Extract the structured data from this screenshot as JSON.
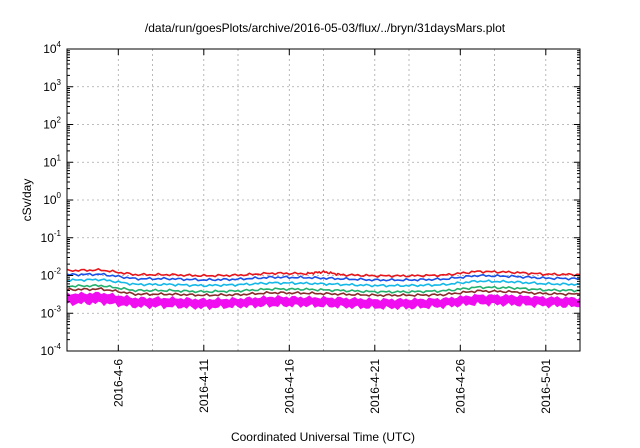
{
  "chart_data": {
    "type": "line",
    "title": "/data/run/goesPlots/archive/2016-05-03/flux/../bryn/31daysMars.plot",
    "xlabel": "Coordinated Universal Time (UTC)",
    "ylabel": "cSv/day",
    "yscale": "log",
    "ylim": [
      0.0001,
      10000
    ],
    "y_ticks": [
      {
        "value": 0.0001,
        "base": "10",
        "exp": "-4"
      },
      {
        "value": 0.001,
        "base": "10",
        "exp": "-3"
      },
      {
        "value": 0.01,
        "base": "10",
        "exp": "-2"
      },
      {
        "value": 0.1,
        "base": "10",
        "exp": "-1"
      },
      {
        "value": 1,
        "base": "10",
        "exp": "0"
      },
      {
        "value": 10,
        "base": "10",
        "exp": "1"
      },
      {
        "value": 100,
        "base": "10",
        "exp": "2"
      },
      {
        "value": 1000,
        "base": "10",
        "exp": "3"
      },
      {
        "value": 10000,
        "base": "10",
        "exp": "4"
      }
    ],
    "xlim": [
      "2016-04-03",
      "2016-05-03"
    ],
    "x_ticks": [
      {
        "date": "2016-04-06",
        "label": "2016-4-6"
      },
      {
        "date": "2016-04-11",
        "label": "2016-4-11"
      },
      {
        "date": "2016-04-16",
        "label": "2016-4-16"
      },
      {
        "date": "2016-04-21",
        "label": "2016-4-21"
      },
      {
        "date": "2016-04-26",
        "label": "2016-4-26"
      },
      {
        "date": "2016-05-01",
        "label": "2016-5-01"
      }
    ],
    "x_minor_ticks": [
      "2016-04-08",
      "2016-04-13",
      "2016-04-18",
      "2016-04-23",
      "2016-04-28",
      "2016-05-03"
    ],
    "grid": true,
    "legend": "none",
    "series": [
      {
        "color": "#e8141b",
        "kind": "line",
        "x": [
          "2016-04-03",
          "2016-04-05",
          "2016-04-07",
          "2016-04-09",
          "2016-04-11",
          "2016-04-13",
          "2016-04-15",
          "2016-04-17",
          "2016-04-18",
          "2016-04-19",
          "2016-04-21",
          "2016-04-23",
          "2016-04-25",
          "2016-04-27",
          "2016-04-29",
          "2016-05-01",
          "2016-05-03"
        ],
        "y": [
          0.0135,
          0.014,
          0.0105,
          0.0105,
          0.0098,
          0.0102,
          0.0115,
          0.0112,
          0.0125,
          0.0105,
          0.0098,
          0.0098,
          0.0102,
          0.0128,
          0.0122,
          0.0108,
          0.0105
        ]
      },
      {
        "color": "#1a52e8",
        "kind": "line",
        "x": [
          "2016-04-03",
          "2016-04-05",
          "2016-04-07",
          "2016-04-09",
          "2016-04-11",
          "2016-04-13",
          "2016-04-15",
          "2016-04-17",
          "2016-04-19",
          "2016-04-21",
          "2016-04-23",
          "2016-04-25",
          "2016-04-27",
          "2016-04-29",
          "2016-05-01",
          "2016-05-03"
        ],
        "y": [
          0.0105,
          0.0108,
          0.0082,
          0.0082,
          0.0076,
          0.008,
          0.009,
          0.0088,
          0.0082,
          0.0076,
          0.0076,
          0.008,
          0.01,
          0.0095,
          0.0085,
          0.0082
        ]
      },
      {
        "color": "#14b8e8",
        "kind": "line",
        "x": [
          "2016-04-03",
          "2016-04-05",
          "2016-04-07",
          "2016-04-09",
          "2016-04-11",
          "2016-04-13",
          "2016-04-15",
          "2016-04-17",
          "2016-04-19",
          "2016-04-21",
          "2016-04-23",
          "2016-04-25",
          "2016-04-27",
          "2016-04-29",
          "2016-05-01",
          "2016-05-03"
        ],
        "y": [
          0.0075,
          0.0078,
          0.0058,
          0.0058,
          0.0054,
          0.0057,
          0.0064,
          0.0062,
          0.0058,
          0.0054,
          0.0054,
          0.0057,
          0.0071,
          0.0068,
          0.006,
          0.0058
        ]
      },
      {
        "color": "#22b06e",
        "kind": "line",
        "x": [
          "2016-04-03",
          "2016-04-05",
          "2016-04-07",
          "2016-04-09",
          "2016-04-11",
          "2016-04-13",
          "2016-04-15",
          "2016-04-17",
          "2016-04-19",
          "2016-04-21",
          "2016-04-23",
          "2016-04-25",
          "2016-04-27",
          "2016-04-29",
          "2016-05-01",
          "2016-05-03"
        ],
        "y": [
          0.0052,
          0.0054,
          0.004,
          0.004,
          0.0037,
          0.0039,
          0.0044,
          0.0043,
          0.004,
          0.0037,
          0.0037,
          0.0039,
          0.0049,
          0.0047,
          0.0041,
          0.004
        ]
      },
      {
        "color": "#8a2a2a",
        "kind": "line",
        "x": [
          "2016-04-03",
          "2016-04-05",
          "2016-04-07",
          "2016-04-09",
          "2016-04-11",
          "2016-04-13",
          "2016-04-15",
          "2016-04-17",
          "2016-04-19",
          "2016-04-21",
          "2016-04-23",
          "2016-04-25",
          "2016-04-27",
          "2016-04-29",
          "2016-05-01",
          "2016-05-03"
        ],
        "y": [
          0.0042,
          0.0044,
          0.0032,
          0.0032,
          0.003,
          0.0031,
          0.0035,
          0.0034,
          0.0032,
          0.003,
          0.003,
          0.0031,
          0.0039,
          0.0037,
          0.0033,
          0.0032
        ]
      },
      {
        "color": "#f00ef0",
        "kind": "band",
        "x": [
          "2016-04-03",
          "2016-04-05",
          "2016-04-07",
          "2016-04-09",
          "2016-04-11",
          "2016-04-13",
          "2016-04-15",
          "2016-04-17",
          "2016-04-19",
          "2016-04-21",
          "2016-04-23",
          "2016-04-25",
          "2016-04-27",
          "2016-04-29",
          "2016-05-01",
          "2016-05-03"
        ],
        "y": [
          0.0032,
          0.0034,
          0.0025,
          0.0025,
          0.0023,
          0.0024,
          0.0027,
          0.0026,
          0.0025,
          0.0023,
          0.0023,
          0.0024,
          0.003,
          0.0029,
          0.0026,
          0.0025
        ],
        "y_low": [
          0.0018,
          0.0019,
          0.0015,
          0.0015,
          0.0014,
          0.0015,
          0.0016,
          0.0016,
          0.0015,
          0.0014,
          0.0014,
          0.0015,
          0.0018,
          0.0017,
          0.0016,
          0.0015
        ]
      }
    ]
  }
}
